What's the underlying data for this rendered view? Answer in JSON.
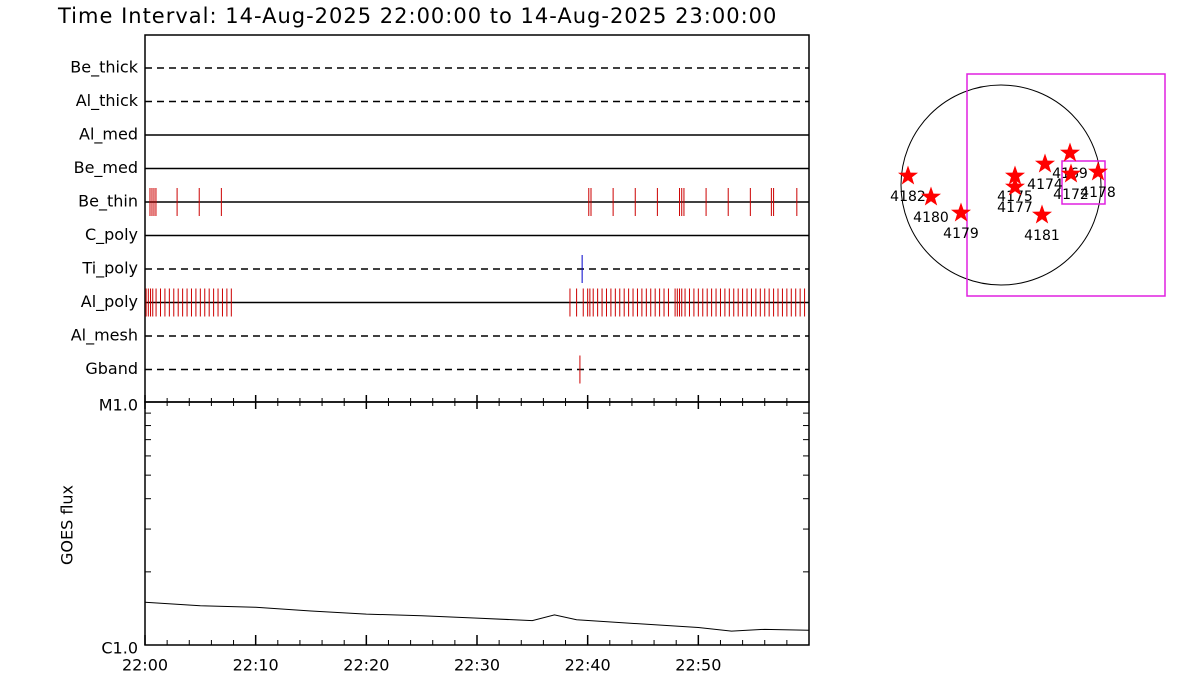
{
  "chart_data": [
    {
      "type": "timeline",
      "title": "Time Interval: 14-Aug-2025 22:00:00 to 14-Aug-2025 23:00:00",
      "xlim": [
        0,
        60
      ],
      "xticks": [
        {
          "value": 0,
          "label": "22:00"
        },
        {
          "value": 10,
          "label": "22:10"
        },
        {
          "value": 20,
          "label": "22:20"
        },
        {
          "value": 30,
          "label": "22:30"
        },
        {
          "value": 40,
          "label": "22:40"
        },
        {
          "value": 50,
          "label": "22:50"
        }
      ],
      "xminor_ticks": [
        2,
        4,
        6,
        8,
        12,
        14,
        16,
        18,
        22,
        24,
        26,
        28,
        32,
        34,
        36,
        38,
        42,
        44,
        46,
        48,
        52,
        54,
        56,
        58
      ],
      "filters": [
        {
          "name": "Be_thick",
          "style": "dashed",
          "color": "#cc0000",
          "times": []
        },
        {
          "name": "Al_thick",
          "style": "dashed",
          "color": "#cc0000",
          "times": []
        },
        {
          "name": "Al_med",
          "style": "solid",
          "color": "#cc0000",
          "times": []
        },
        {
          "name": "Be_med",
          "style": "solid",
          "color": "#cc0000",
          "times": []
        },
        {
          "name": "Be_thin",
          "style": "solid",
          "color": "#cc0000",
          "times": [
            0.45,
            0.63,
            0.81,
            0.99,
            2.9,
            4.9,
            6.9,
            40.1,
            40.3,
            42.3,
            44.3,
            46.3,
            48.3,
            48.5,
            48.7,
            50.7,
            52.7,
            54.7,
            56.6,
            56.8,
            58.9
          ]
        },
        {
          "name": "C_poly",
          "style": "solid",
          "color": "#cc0000",
          "times": []
        },
        {
          "name": "Ti_poly",
          "style": "dashed",
          "color": "#0000cc",
          "times": [
            39.5
          ]
        },
        {
          "name": "Al_poly",
          "style": "solid",
          "color": "#cc0000",
          "times": [
            0.1,
            0.3,
            0.5,
            0.7,
            1.0,
            1.4,
            1.8,
            2.2,
            2.6,
            3.0,
            3.4,
            3.8,
            4.2,
            4.6,
            5.0,
            5.4,
            5.8,
            6.2,
            6.6,
            7.0,
            7.4,
            7.8,
            38.4,
            39.0,
            39.6,
            40.0,
            40.2,
            40.5,
            40.9,
            41.3,
            41.7,
            42.1,
            42.5,
            42.9,
            43.3,
            43.7,
            44.1,
            44.5,
            44.9,
            45.3,
            45.7,
            46.1,
            46.5,
            46.9,
            47.3,
            47.9,
            48.1,
            48.3,
            48.5,
            48.8,
            49.2,
            49.6,
            50.0,
            50.4,
            50.8,
            51.2,
            51.6,
            52.0,
            52.4,
            52.8,
            53.2,
            53.6,
            54.0,
            54.4,
            54.8,
            55.2,
            55.6,
            56.0,
            56.4,
            56.8,
            57.2,
            57.6,
            58.0,
            58.4,
            58.8,
            59.2,
            59.6
          ]
        },
        {
          "name": "Al_mesh",
          "style": "dashed",
          "color": "#cc0000",
          "times": []
        },
        {
          "name": "Gband",
          "style": "dashed",
          "color": "#cc0000",
          "times": [
            39.3
          ]
        }
      ]
    },
    {
      "type": "line",
      "ylabel": "GOES flux",
      "log": true,
      "color": "#000000",
      "xlim": [
        0,
        60
      ],
      "ylim": [
        1e-06,
        1e-05
      ],
      "yticks": [
        {
          "value": 1e-05,
          "label": "M1.0"
        },
        {
          "value": 1e-06,
          "label": "C1.0"
        }
      ],
      "yminor_ticks": [
        2e-06,
        3e-06,
        4e-06,
        5e-06,
        6e-06,
        7e-06,
        8e-06,
        9e-06
      ],
      "x": [
        0,
        5,
        10,
        15,
        20,
        25,
        30,
        35,
        37,
        39,
        45,
        50,
        53,
        56,
        60
      ],
      "values": [
        1.5e-06,
        1.45e-06,
        1.43e-06,
        1.38e-06,
        1.34e-06,
        1.32e-06,
        1.29e-06,
        1.26e-06,
        1.33e-06,
        1.27e-06,
        1.22e-06,
        1.18e-06,
        1.14e-06,
        1.16e-06,
        1.15e-06
      ]
    },
    {
      "type": "map",
      "xlim": [
        -1000,
        1000
      ],
      "ylim": [
        -1000,
        1000
      ],
      "disk_color": "#000000",
      "box_color": "#e020e0",
      "star_color": "#ff0000",
      "boxes": [
        {
          "x": [
            -340,
            1640
          ],
          "y": [
            -1110,
            1110
          ]
        },
        {
          "x": [
            610,
            1040
          ],
          "y": [
            -190,
            240
          ]
        }
      ],
      "regions": [
        {
          "label": "4182",
          "x": -930,
          "y": 90
        },
        {
          "label": "4180",
          "x": -700,
          "y": -120
        },
        {
          "label": "4179",
          "x": -400,
          "y": -280
        },
        {
          "label": "4175",
          "x": 140,
          "y": 90
        },
        {
          "label": "4177",
          "x": 140,
          "y": -20
        },
        {
          "label": "4174",
          "x": 440,
          "y": 210
        },
        {
          "label": "4169",
          "x": 690,
          "y": 320
        },
        {
          "label": "4172",
          "x": 700,
          "y": 110
        },
        {
          "label": "4178",
          "x": 970,
          "y": 130
        },
        {
          "label": "4181",
          "x": 410,
          "y": -300
        }
      ]
    }
  ]
}
